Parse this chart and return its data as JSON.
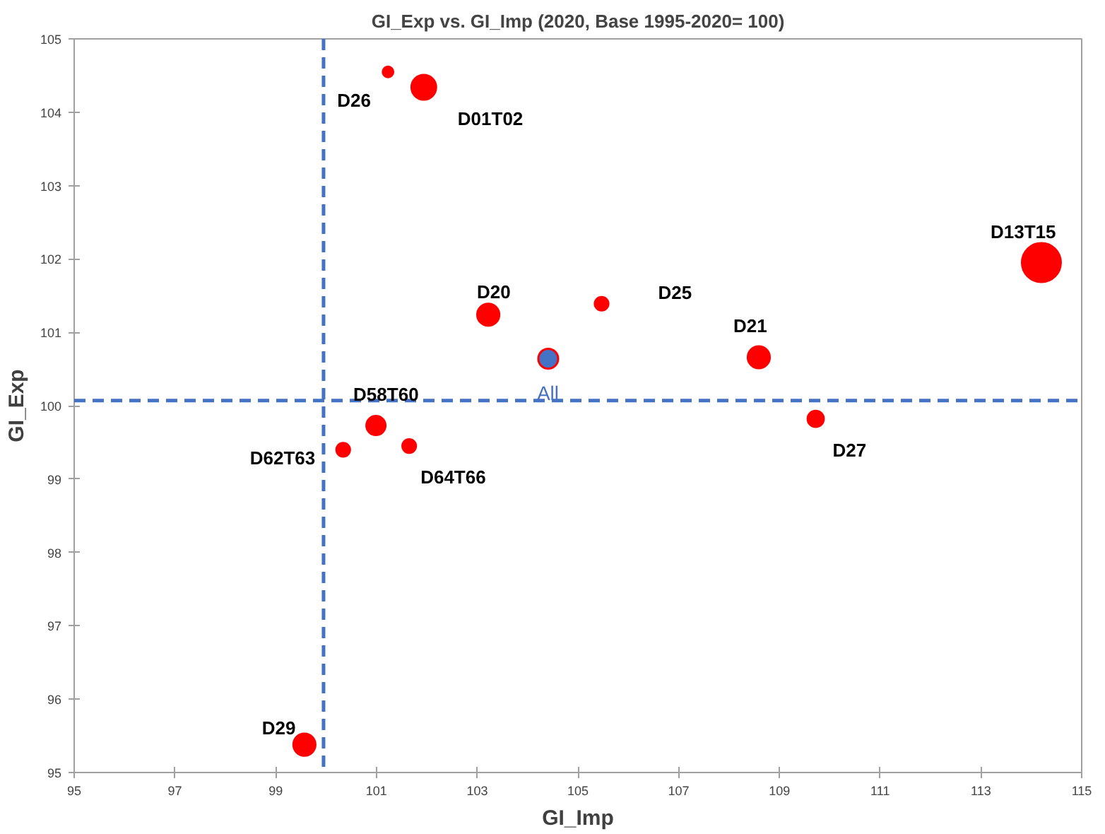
{
  "chart_data": {
    "type": "bubble",
    "title": "GI_Exp vs. GI_Imp (2020, Base 1995-2020= 100)",
    "xlabel": "GI_Imp",
    "ylabel": "GI_Exp",
    "xlim": [
      95,
      115
    ],
    "xticks": [
      95,
      97,
      99,
      101,
      103,
      105,
      107,
      109,
      111,
      113,
      115
    ],
    "ylim": [
      95,
      105
    ],
    "yticks": [
      95,
      96,
      97,
      98,
      99,
      100,
      101,
      102,
      103,
      104,
      105
    ],
    "grid": false,
    "marker": "circle",
    "ref_lines": [
      {
        "axis": "x",
        "value": 99.95,
        "label": null,
        "color": "#4472c4",
        "line_style": "dashed"
      },
      {
        "axis": "y",
        "value": 100.07,
        "label": null,
        "color": "#4472c4",
        "line_style": "dashed"
      }
    ],
    "series": [
      {
        "name": "D26",
        "color": "#ff0000",
        "x": [
          101.23
        ],
        "values": [
          104.55
        ],
        "sizes": [
          0.08
        ]
      },
      {
        "name": "D01T02",
        "color": "#ff0000",
        "x": [
          101.94
        ],
        "values": [
          104.34
        ],
        "sizes": [
          0.41
        ]
      },
      {
        "name": "D20",
        "color": "#ff0000",
        "x": [
          103.22
        ],
        "values": [
          101.24
        ],
        "sizes": [
          0.33
        ]
      },
      {
        "name": "All",
        "color": "#4472c4",
        "x": [
          104.41
        ],
        "values": [
          100.64
        ],
        "sizes": [
          0.25
        ]
      },
      {
        "name": "D25",
        "color": "#ff0000",
        "x": [
          105.47
        ],
        "values": [
          101.39
        ],
        "sizes": [
          0.13
        ]
      },
      {
        "name": "D21",
        "color": "#ff0000",
        "x": [
          108.59
        ],
        "values": [
          100.66
        ],
        "sizes": [
          0.33
        ]
      },
      {
        "name": "D27",
        "color": "#ff0000",
        "x": [
          109.72
        ],
        "values": [
          99.82
        ],
        "sizes": [
          0.18
        ]
      },
      {
        "name": "D13T15",
        "color": "#ff0000",
        "x": [
          114.2
        ],
        "values": [
          101.95
        ],
        "sizes": [
          1
        ]
      },
      {
        "name": "D58T60",
        "color": "#ff0000",
        "x": [
          100.99
        ],
        "values": [
          99.73
        ],
        "sizes": [
          0.25
        ]
      },
      {
        "name": "D62T63",
        "color": "#ff0000",
        "x": [
          100.34
        ],
        "values": [
          99.4
        ],
        "sizes": [
          0.13
        ]
      },
      {
        "name": "D64T66",
        "color": "#ff0000",
        "x": [
          101.65
        ],
        "values": [
          99.45
        ],
        "sizes": [
          0.13
        ]
      },
      {
        "name": "D29",
        "color": "#ff0000",
        "x": [
          99.57
        ],
        "values": [
          95.38
        ],
        "sizes": [
          0.33
        ]
      }
    ]
  }
}
